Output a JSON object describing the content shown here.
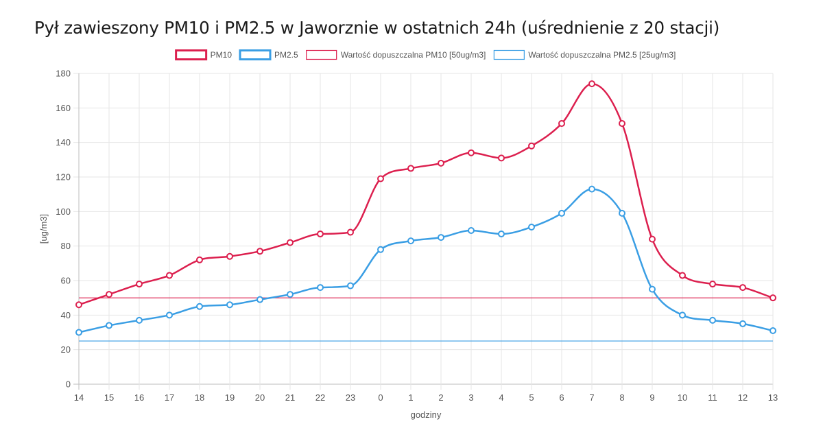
{
  "page": {
    "title": "Pył zawieszony PM10 i PM2.5 w Jaworznie w ostatnich 24h (uśrednienie z 20 stacji)"
  },
  "chart_data": {
    "type": "line",
    "xlabel": "godziny",
    "ylabel": "[ug/m3]",
    "ylim": [
      0,
      180
    ],
    "yticks": [
      0,
      20,
      40,
      60,
      80,
      100,
      120,
      140,
      160,
      180
    ],
    "grid": true,
    "legend_position": "top-center",
    "categories": [
      "14",
      "15",
      "16",
      "17",
      "18",
      "19",
      "20",
      "21",
      "22",
      "23",
      "0",
      "1",
      "2",
      "3",
      "4",
      "5",
      "6",
      "7",
      "8",
      "9",
      "10",
      "11",
      "12",
      "13"
    ],
    "series": [
      {
        "name": "PM10",
        "color": "#dc1f4e",
        "style": "smooth-markers",
        "values": [
          46,
          52,
          58,
          63,
          72,
          74,
          77,
          82,
          87,
          88,
          119,
          125,
          128,
          134,
          131,
          138,
          151,
          174,
          151,
          84,
          63,
          58,
          56,
          50
        ]
      },
      {
        "name": "PM2.5",
        "color": "#3a9ee4",
        "style": "smooth-markers",
        "values": [
          30,
          34,
          37,
          40,
          45,
          46,
          49,
          52,
          56,
          57,
          78,
          83,
          85,
          89,
          87,
          91,
          99,
          113,
          99,
          55,
          40,
          37,
          35,
          31
        ]
      },
      {
        "name": "Wartość dopuszczalna PM10 [50ug/m3]",
        "color": "#dc1f4e",
        "style": "flat-line",
        "values": [
          50,
          50,
          50,
          50,
          50,
          50,
          50,
          50,
          50,
          50,
          50,
          50,
          50,
          50,
          50,
          50,
          50,
          50,
          50,
          50,
          50,
          50,
          50,
          50
        ]
      },
      {
        "name": "Wartość dopuszczalna PM2.5 [25ug/m3]",
        "color": "#3a9ee4",
        "style": "flat-line",
        "values": [
          25,
          25,
          25,
          25,
          25,
          25,
          25,
          25,
          25,
          25,
          25,
          25,
          25,
          25,
          25,
          25,
          25,
          25,
          25,
          25,
          25,
          25,
          25,
          25
        ]
      }
    ]
  }
}
